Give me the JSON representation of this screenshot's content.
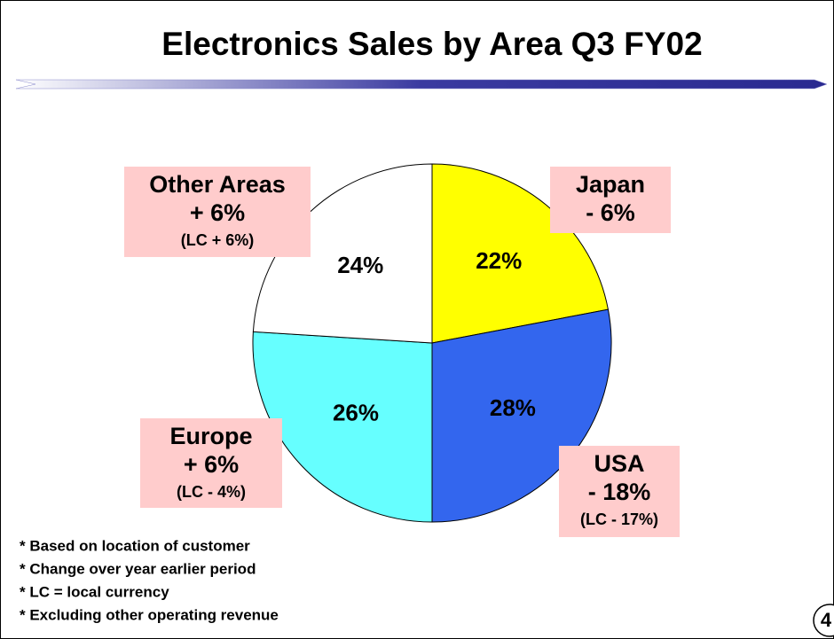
{
  "chart_data": {
    "type": "pie",
    "title": "Electronics Sales by Area Q3 FY02",
    "categories": [
      "Japan",
      "USA",
      "Europe",
      "Other Areas"
    ],
    "values": [
      22,
      28,
      26,
      24
    ],
    "value_labels": [
      "22%",
      "28%",
      "26%",
      "24%"
    ],
    "colors": [
      "#ffff00",
      "#3366ee",
      "#66ffff",
      "#ffffff"
    ],
    "callouts": [
      {
        "change": "- 6%"
      },
      {
        "change": "- 18%",
        "lc": "(LC - 17%)"
      },
      {
        "change": "+ 6%",
        "lc": "(LC - 4%)"
      },
      {
        "change": "+ 6%",
        "lc": "(LC + 6%)"
      }
    ],
    "footnotes": [
      "* Based on location of customer",
      "* Change over year earlier period",
      "* LC = local currency",
      "* Excluding other operating revenue"
    ],
    "page_number": "4"
  }
}
